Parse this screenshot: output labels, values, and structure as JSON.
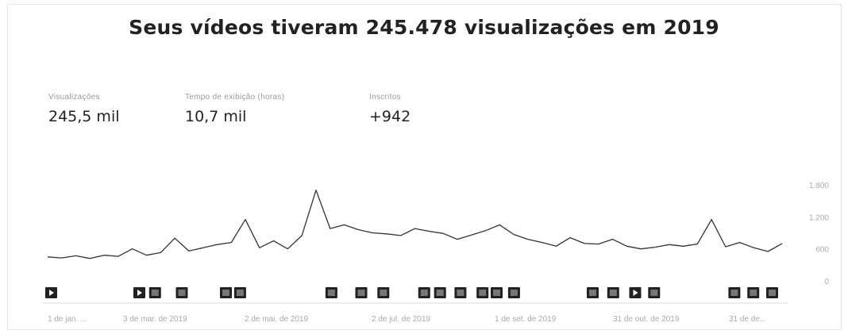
{
  "title": "Seus vídeos tiveram 245.478 visualizações em 2019",
  "metrics": [
    {
      "label": "Visualizações",
      "value": "245,5 mil"
    },
    {
      "label": "Tempo de exibição (horas)",
      "value": "10,7 mil"
    },
    {
      "label": "Inscritos",
      "value": "+942"
    }
  ],
  "chart_data": {
    "type": "line",
    "ylim": [
      0,
      1800
    ],
    "y_ticks": [
      {
        "value": 1800,
        "label": "1.800"
      },
      {
        "value": 1200,
        "label": "1.200"
      },
      {
        "value": 600,
        "label": "600"
      },
      {
        "value": 0,
        "label": "0"
      }
    ],
    "x_tick_labels": [
      "1 de jan. ...",
      "3 de mar. de 2019",
      "2 de mai. de 2019",
      "2 de jul. de 2019",
      "1 de set. de 2019",
      "31 de out. de 2019",
      "31 de de..."
    ],
    "grid": false,
    "series": [
      {
        "color": "#333333",
        "x": [
          0,
          7,
          14,
          21,
          28,
          35,
          42,
          49,
          56,
          63,
          70,
          77,
          84,
          91,
          98,
          105,
          112,
          119,
          126,
          133,
          140,
          147,
          154,
          161,
          168,
          175,
          182,
          189,
          196,
          203,
          210,
          217,
          224,
          231,
          238,
          245,
          252,
          259,
          266,
          273,
          280,
          287,
          294,
          301,
          308,
          315,
          322,
          329,
          336,
          343,
          350,
          357,
          364
        ],
        "values": [
          450,
          430,
          470,
          420,
          480,
          460,
          600,
          480,
          530,
          800,
          560,
          620,
          680,
          720,
          1150,
          620,
          750,
          600,
          850,
          1700,
          980,
          1050,
          960,
          900,
          880,
          850,
          980,
          930,
          890,
          780,
          860,
          940,
          1050,
          870,
          780,
          720,
          650,
          810,
          700,
          690,
          780,
          650,
          600,
          630,
          680,
          650,
          690,
          1150,
          640,
          720,
          620,
          550,
          700
        ]
      }
    ],
    "video_markers": [
      {
        "day": 2,
        "icon": "play"
      },
      {
        "day": 58,
        "icon": "play"
      },
      {
        "day": 68,
        "icon": "thumb"
      },
      {
        "day": 85,
        "icon": "thumb"
      },
      {
        "day": 113,
        "icon": "thumb"
      },
      {
        "day": 122,
        "icon": "thumb"
      },
      {
        "day": 180,
        "icon": "thumb"
      },
      {
        "day": 199,
        "icon": "thumb"
      },
      {
        "day": 213,
        "icon": "thumb"
      },
      {
        "day": 239,
        "icon": "thumb"
      },
      {
        "day": 249,
        "icon": "thumb"
      },
      {
        "day": 262,
        "icon": "thumb"
      },
      {
        "day": 276,
        "icon": "thumb"
      },
      {
        "day": 285,
        "icon": "thumb"
      },
      {
        "day": 296,
        "icon": "thumb"
      },
      {
        "day": 346,
        "icon": "thumb"
      },
      {
        "day": 359,
        "icon": "thumb"
      },
      {
        "day": 373,
        "icon": "play"
      },
      {
        "day": 385,
        "icon": "thumb"
      },
      {
        "day": 436,
        "icon": "thumb"
      },
      {
        "day": 448,
        "icon": "thumb"
      },
      {
        "day": 460,
        "icon": "thumb"
      }
    ]
  }
}
